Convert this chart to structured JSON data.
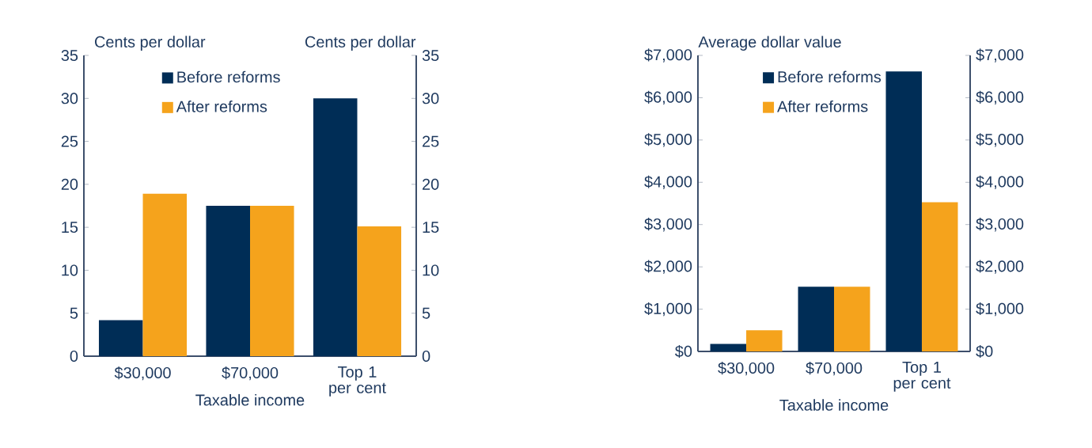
{
  "chart_data": [
    {
      "type": "bar",
      "ylabel": "Cents per dollar",
      "y2label": "Cents per dollar",
      "xlabel": "Taxable income",
      "categories": [
        "$30,000",
        "$70,000",
        "Top 1 per cent"
      ],
      "series": [
        {
          "name": "Before reforms",
          "color": "#002d56",
          "values": [
            4.2,
            17.5,
            30
          ]
        },
        {
          "name": "After reforms",
          "color": "#f5a31c",
          "values": [
            18.9,
            17.5,
            15.1
          ]
        }
      ],
      "ylim": [
        0,
        35
      ],
      "yticks": [
        0,
        5,
        10,
        15,
        20,
        25,
        30,
        35
      ],
      "y2lim": [
        0,
        35
      ],
      "y2ticks": [
        0,
        5,
        10,
        15,
        20,
        25,
        30,
        35
      ],
      "legend": "top left",
      "grid": false
    },
    {
      "type": "bar",
      "ylabel": "Average dollar value",
      "xlabel": "Taxable income",
      "categories": [
        "$30,000",
        "$70,000",
        "Top 1 per cent"
      ],
      "series": [
        {
          "name": "Before reforms",
          "color": "#002d56",
          "values": [
            180,
            1530,
            6620
          ]
        },
        {
          "name": "After reforms",
          "color": "#f5a31c",
          "values": [
            500,
            1530,
            3530
          ]
        }
      ],
      "ylim": [
        0,
        7000
      ],
      "yticks": [
        {
          "value": 0,
          "label": "$0"
        },
        {
          "value": 1000,
          "label": "$1,000"
        },
        {
          "value": 2000,
          "label": "$2,000"
        },
        {
          "value": 3000,
          "label": "$3,000"
        },
        {
          "value": 4000,
          "label": "$4,000"
        },
        {
          "value": 5000,
          "label": "$5,000"
        },
        {
          "value": 6000,
          "label": "$6,000"
        },
        {
          "value": 7000,
          "label": "$7,000"
        }
      ],
      "y2lim": [
        0,
        7000
      ],
      "y2ticks": [
        {
          "value": 0,
          "label": "$0"
        },
        {
          "value": 1000,
          "label": "$1,000"
        },
        {
          "value": 2000,
          "label": "$2,000"
        },
        {
          "value": 3000,
          "label": "$3,000"
        },
        {
          "value": 4000,
          "label": "$4,000"
        },
        {
          "value": 5000,
          "label": "$5,000"
        },
        {
          "value": 6000,
          "label": "$6,000"
        },
        {
          "value": 7000,
          "label": "$7,000"
        }
      ],
      "legend": "top left",
      "grid": false
    }
  ]
}
